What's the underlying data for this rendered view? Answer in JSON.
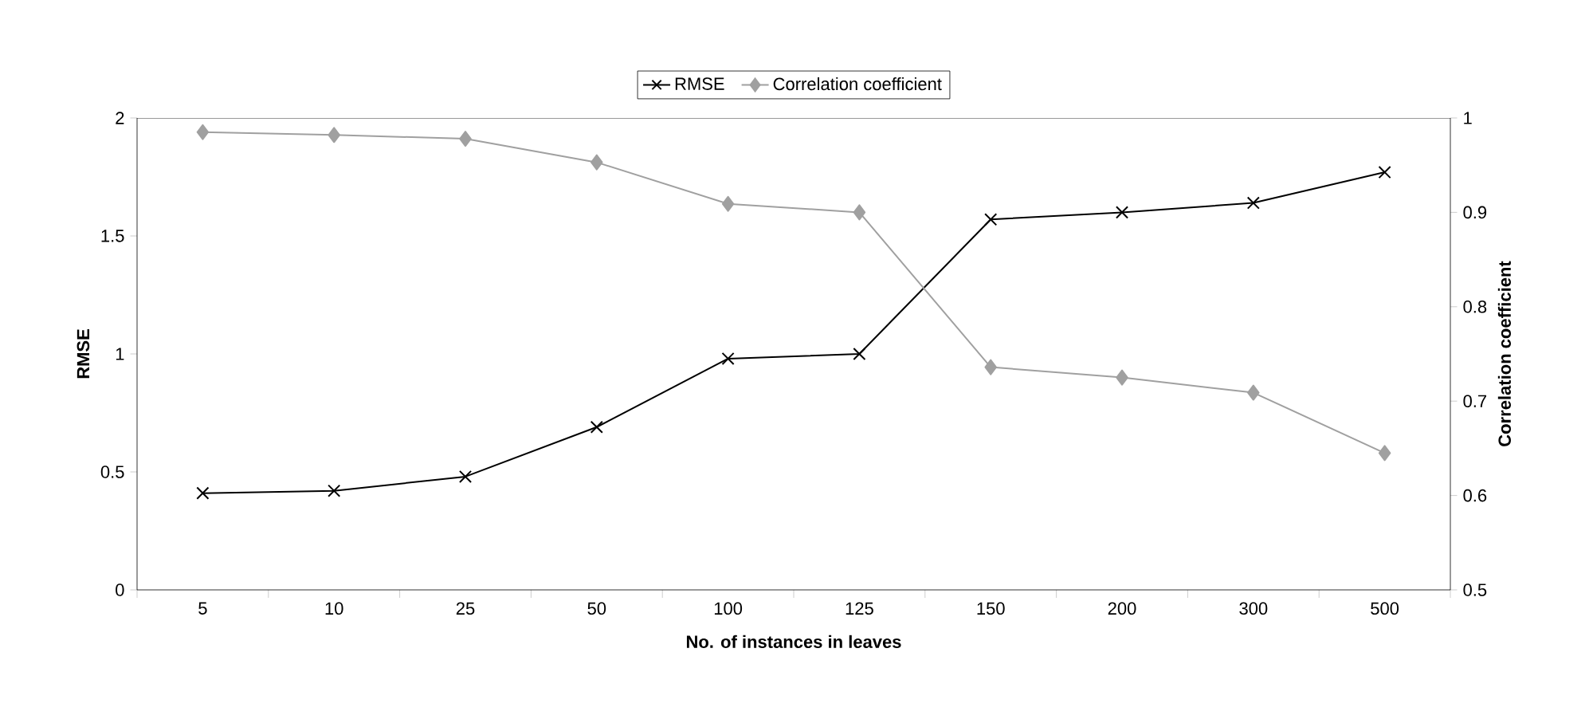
{
  "chart_data": {
    "type": "line",
    "xlabel": "No. of instances in leaves",
    "ylabel": "RMSE",
    "y2label": "Correlation coefficient",
    "categories": [
      "5",
      "10",
      "25",
      "50",
      "100",
      "125",
      "150",
      "200",
      "300",
      "500"
    ],
    "series": [
      {
        "name": "RMSE",
        "color": "#000000",
        "marker": "cross",
        "values": [
          0.41,
          0.42,
          0.48,
          0.69,
          0.98,
          1.0,
          1.57,
          1.6,
          1.64,
          1.77
        ]
      },
      {
        "name": "Correlation coefficient",
        "color": "#a0a0a0",
        "marker": "diamond",
        "axis": "y2",
        "values": [
          0.985,
          0.982,
          0.978,
          0.953,
          0.909,
          0.9,
          0.736,
          0.725,
          0.709,
          0.645
        ]
      }
    ],
    "ylim": [
      0,
      2
    ],
    "yticks": [
      0,
      0.5,
      1,
      1.5,
      2
    ],
    "y2lim": [
      0.5,
      1
    ],
    "y2ticks": [
      0.5,
      0.6,
      0.7,
      0.8,
      0.9,
      1
    ],
    "legend": "top",
    "grid": false
  }
}
